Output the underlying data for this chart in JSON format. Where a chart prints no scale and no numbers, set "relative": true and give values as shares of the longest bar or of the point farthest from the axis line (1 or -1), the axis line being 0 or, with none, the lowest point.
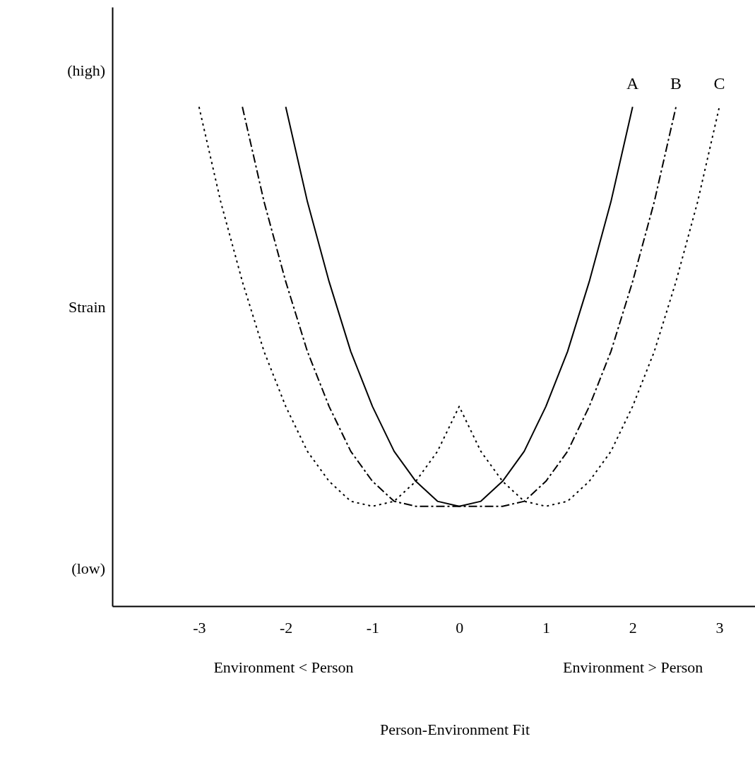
{
  "chart_data": {
    "type": "line",
    "relative": true,
    "ylabel": "Strain",
    "annotations": [
      "(high)",
      "(low)",
      "Environment < Person",
      "Environment > Person",
      "Person-Environment Fit"
    ],
    "xlim": [
      -4,
      3.9
    ],
    "xticks": [
      -3,
      -2,
      -1,
      0,
      1,
      2,
      3
    ],
    "grid": false,
    "marker": "none",
    "series": [
      {
        "name": "A",
        "color": "#000000",
        "line_style": "solid",
        "x": [
          -2,
          -1.75,
          -1.5,
          -1.25,
          -1,
          -0.75,
          -0.5,
          -0.25,
          0,
          0.25,
          0.5,
          0.75,
          1,
          1.25,
          1.5,
          1.75,
          2
        ],
        "values": [
          1,
          0.81,
          0.65,
          0.51,
          0.4,
          0.31,
          0.25,
          0.21,
          0.2,
          0.21,
          0.25,
          0.31,
          0.4,
          0.51,
          0.65,
          0.81,
          1
        ]
      },
      {
        "name": "B",
        "color": "#000000",
        "line_style": "dashed",
        "x": [
          -2.5,
          -2.25,
          -2,
          -1.75,
          -1.5,
          -1.25,
          -1,
          -0.75,
          -0.5,
          0.5,
          0.75,
          1,
          1.25,
          1.5,
          1.75,
          2,
          2.25,
          2.5
        ],
        "values": [
          1,
          0.81,
          0.65,
          0.51,
          0.4,
          0.31,
          0.25,
          0.21,
          0.2,
          0.2,
          0.21,
          0.25,
          0.31,
          0.4,
          0.51,
          0.65,
          0.81,
          1
        ]
      },
      {
        "name": "C",
        "color": "#000000",
        "line_style": "dotted",
        "x": [
          -3,
          -2.75,
          -2.5,
          -2.25,
          -2,
          -1.75,
          -1.5,
          -1.25,
          -1,
          -0.75,
          -0.5,
          -0.25,
          0,
          0.25,
          0.5,
          0.75,
          1,
          1.25,
          1.5,
          1.75,
          2,
          2.25,
          2.5,
          2.75,
          3
        ],
        "values": [
          1,
          0.81,
          0.65,
          0.51,
          0.4,
          0.31,
          0.25,
          0.21,
          0.2,
          0.21,
          0.25,
          0.31,
          0.4,
          0.31,
          0.25,
          0.21,
          0.2,
          0.21,
          0.25,
          0.31,
          0.4,
          0.51,
          0.65,
          0.81,
          1
        ]
      }
    ]
  }
}
